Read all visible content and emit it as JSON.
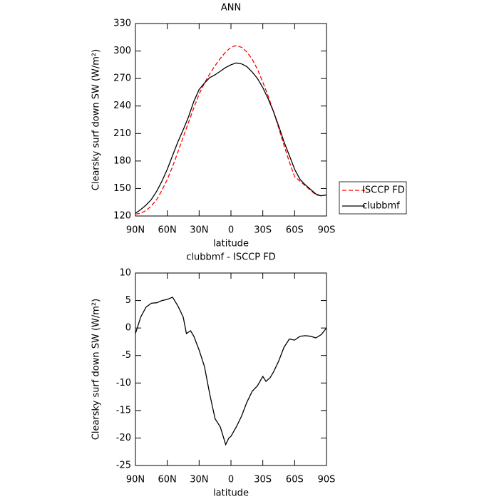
{
  "chart_data": [
    {
      "type": "line",
      "title": "ANN",
      "xlabel": "latitude",
      "ylabel": "Clearsky surf down SW (W/m²)",
      "xlim": [
        90,
        -90
      ],
      "ylim": [
        120,
        330
      ],
      "xticks": [
        {
          "value": 90,
          "label": "90N"
        },
        {
          "value": 60,
          "label": "60N"
        },
        {
          "value": 30,
          "label": "30N"
        },
        0,
        {
          "value": -30,
          "label": "30S"
        },
        {
          "value": -60,
          "label": "60S"
        },
        {
          "value": -90,
          "label": "90S"
        }
      ],
      "yticks": [
        120,
        150,
        180,
        210,
        240,
        270,
        300,
        330
      ],
      "legend": "right",
      "x": [
        90,
        85,
        80,
        75,
        70,
        65,
        60,
        55,
        50,
        45,
        40,
        35,
        30,
        25,
        20,
        15,
        10,
        5,
        0,
        -5,
        -10,
        -15,
        -20,
        -25,
        -30,
        -35,
        -40,
        -45,
        -50,
        -55,
        -60,
        -65,
        -70,
        -75,
        -80,
        -85,
        -90
      ],
      "series": [
        {
          "name": "ISCCP FD",
          "color": "#ff0000",
          "dashed": true,
          "values": [
            122,
            123,
            126,
            131,
            138,
            148,
            160,
            174,
            190,
            206,
            222,
            238,
            253,
            265,
            275,
            284,
            292,
            299,
            304,
            306,
            304,
            299,
            291,
            280,
            266,
            251,
            234,
            216,
            197,
            179,
            163,
            158,
            153,
            148,
            143,
            142,
            143
          ]
        },
        {
          "name": "clubbmf",
          "color": "#000000",
          "dashed": false,
          "values": [
            123,
            127,
            132,
            138,
            147,
            158,
            171,
            186,
            201,
            214,
            228,
            245,
            258,
            265,
            271,
            274,
            278,
            282,
            285,
            287,
            286,
            283,
            277,
            270,
            260,
            248,
            234,
            218,
            201,
            186,
            171,
            160,
            154,
            149,
            144,
            142,
            143
          ]
        }
      ]
    },
    {
      "type": "line",
      "title": "clubbmf - ISCCP FD",
      "xlabel": "latitude",
      "ylabel": "Clearsky surf down SW (W/m²)",
      "xlim": [
        90,
        -90
      ],
      "ylim": [
        -25,
        10
      ],
      "xticks": [
        {
          "value": 90,
          "label": "90N"
        },
        {
          "value": 60,
          "label": "60N"
        },
        {
          "value": 30,
          "label": "30N"
        },
        0,
        {
          "value": -30,
          "label": "30S"
        },
        {
          "value": -60,
          "label": "60S"
        },
        {
          "value": -90,
          "label": "90S"
        }
      ],
      "yticks": [
        -25,
        -20,
        -15,
        -10,
        -5,
        0,
        5,
        10
      ],
      "x": [
        90,
        85,
        80,
        75,
        70,
        65,
        60,
        55,
        50,
        45,
        42,
        38,
        35,
        30,
        25,
        20,
        15,
        10,
        5,
        2,
        0,
        -5,
        -10,
        -15,
        -20,
        -25,
        -30,
        -33,
        -37,
        -40,
        -45,
        -50,
        -55,
        -60,
        -65,
        -70,
        -75,
        -80,
        -85,
        -90
      ],
      "series": [
        {
          "color": "#000000",
          "dashed": false,
          "values": [
            -1,
            2,
            3.8,
            4.5,
            4.6,
            5,
            5.2,
            5.6,
            4,
            2,
            -1,
            -0.5,
            -1.5,
            -4,
            -7,
            -12,
            -16.5,
            -18,
            -21.2,
            -20,
            -19.7,
            -18,
            -16,
            -13.5,
            -11.5,
            -10.5,
            -8.8,
            -9.7,
            -9,
            -8,
            -6,
            -3.5,
            -2,
            -2.2,
            -1.5,
            -1.4,
            -1.5,
            -1.8,
            -1.2,
            0
          ]
        }
      ]
    }
  ]
}
